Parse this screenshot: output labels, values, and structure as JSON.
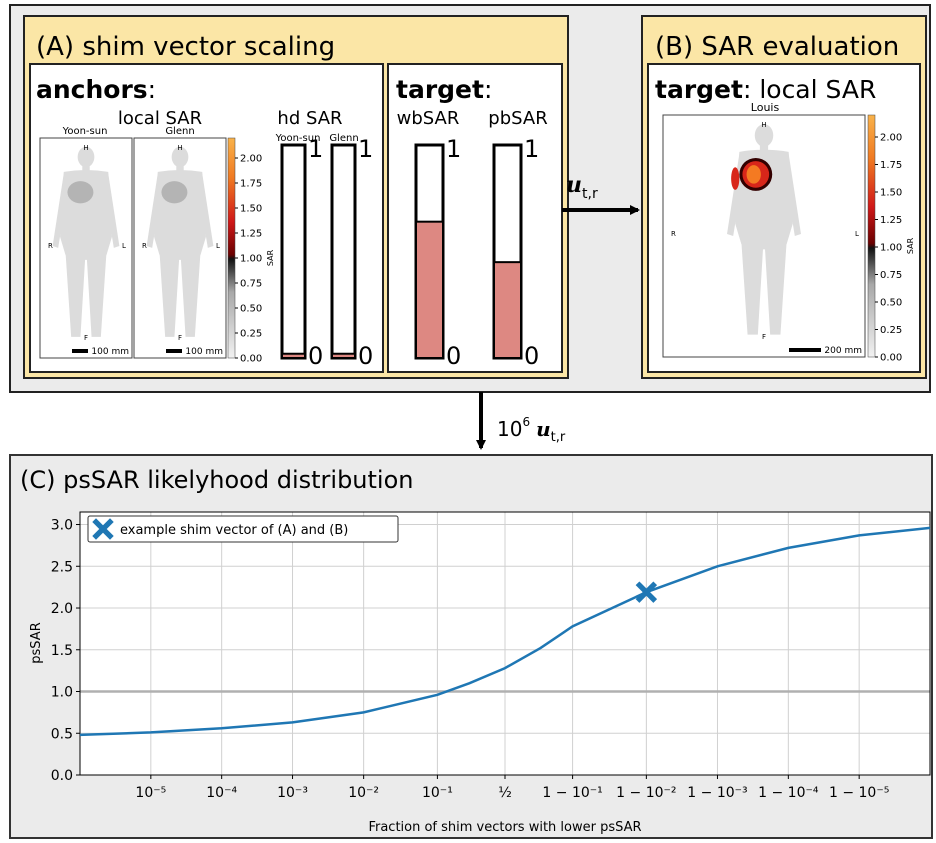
{
  "panel_a": {
    "title": "(A) shim vector scaling",
    "anchors": {
      "heading": "anchors",
      "colon": ":",
      "map_label": "local SAR",
      "bar_label": "hd SAR",
      "subjects": [
        {
          "name": "Yoon-sun",
          "scale": "100 mm",
          "hd": 0.02
        },
        {
          "name": "Glenn",
          "scale": "100 mm",
          "hd": 0.02
        }
      ]
    },
    "target": {
      "heading": "target",
      "colon": ":",
      "bars": [
        {
          "name": "wbSAR",
          "value": 0.64
        },
        {
          "name": "pbSAR",
          "value": 0.45
        }
      ]
    },
    "bar_scale": {
      "lim": [
        0,
        1
      ],
      "ticks": [
        0,
        1
      ],
      "color": "#dd8882"
    }
  },
  "orient": {
    "head": "H",
    "right": "R",
    "left": "L",
    "foot": "F"
  },
  "colorbar": {
    "label": "SAR",
    "lim": [
      0,
      2.2
    ],
    "ticks": [
      {
        "value": 0,
        "label": "0.00"
      },
      0.25,
      {
        "value": 0.5,
        "label": "0.50"
      },
      0.75,
      {
        "value": 1,
        "label": "1.00"
      },
      1.25,
      {
        "value": 1.5,
        "label": "1.50"
      },
      1.75,
      {
        "value": 2,
        "label": "2.00"
      }
    ]
  },
  "panel_b": {
    "title": "(B) SAR evaluation",
    "heading": "target",
    "rest": ": local SAR",
    "subject": "Louis",
    "scale": "200 mm"
  },
  "arrows": {
    "right": {
      "symbol": "u",
      "sub": "t,r"
    },
    "down": {
      "factor": "10",
      "exp": "6",
      "symbol": "u",
      "sub": "t,r"
    }
  },
  "chart_data": {
    "type": "line",
    "title": "(C) psSAR likelyhood distribution",
    "x_label": "Fraction of shim vectors with lower psSAR",
    "y_label": "psSAR",
    "xscale": "logit",
    "xlim": [
      1e-06,
      0.999999
    ],
    "ylim": [
      0,
      3.15
    ],
    "xticks": [
      {
        "value": 1e-05,
        "label": "10⁻⁵"
      },
      {
        "value": 0.0001,
        "label": "10⁻⁴"
      },
      {
        "value": 0.001,
        "label": "10⁻³"
      },
      {
        "value": 0.01,
        "label": "10⁻²"
      },
      {
        "value": 0.1,
        "label": "10⁻¹"
      },
      {
        "value": 0.5,
        "label": "½"
      },
      {
        "value": 0.9,
        "label": "1 − 10⁻¹"
      },
      {
        "value": 0.99,
        "label": "1 − 10⁻²"
      },
      {
        "value": 0.999,
        "label": "1 − 10⁻³"
      },
      {
        "value": 0.9999,
        "label": "1 − 10⁻⁴"
      },
      {
        "value": 0.99999,
        "label": "1 − 10⁻⁵"
      }
    ],
    "yticks": [
      {
        "value": 0,
        "label": "0.0"
      },
      0.5,
      {
        "value": 1,
        "label": "1.0"
      },
      1.5,
      {
        "value": 2,
        "label": "2.0"
      },
      2.5,
      {
        "value": 3,
        "label": "3.0"
      }
    ],
    "grid": true,
    "hline": 1,
    "x": [
      1e-06,
      1e-05,
      0.0001,
      0.001,
      0.01,
      0.1,
      0.24,
      0.5,
      0.76,
      0.9,
      0.99,
      0.999,
      0.9999,
      0.99999,
      0.999999
    ],
    "series": [
      {
        "color": "#1f77b4",
        "values": [
          0.48,
          0.51,
          0.56,
          0.63,
          0.75,
          0.96,
          1.1,
          1.28,
          1.52,
          1.78,
          2.19,
          2.5,
          2.72,
          2.87,
          2.96
        ]
      }
    ],
    "marker": {
      "name": "example shim vector of (A) and (B)",
      "x": 0.99,
      "y": 2.19,
      "color": "#1f77b4"
    },
    "legend": "upper left"
  }
}
